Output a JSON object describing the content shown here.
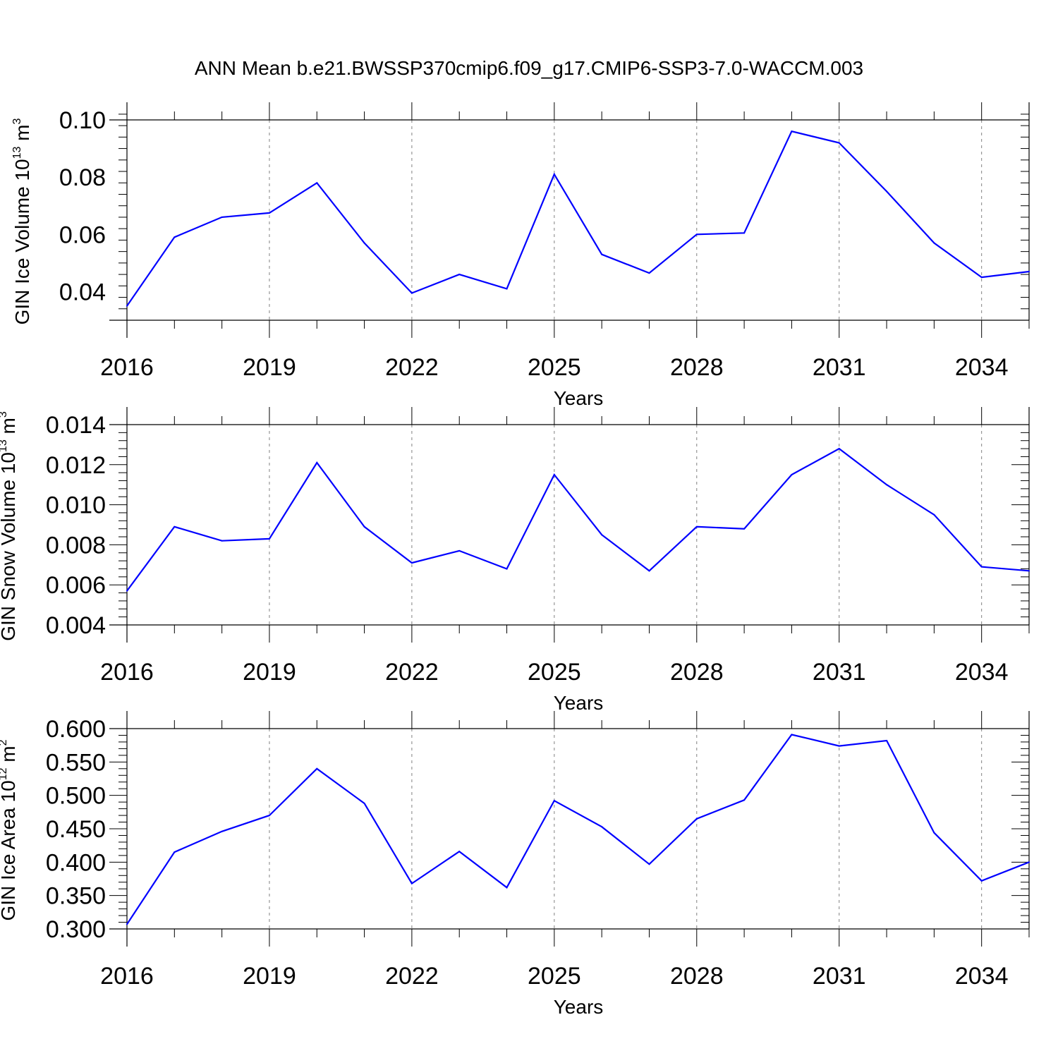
{
  "title": "ANN Mean b.e21.BWSSP370cmip6.f09_g17.CMIP6-SSP3-7.0-WACCM.003",
  "colors": {
    "line": "#0000ff",
    "axis": "#000000",
    "grid": "#808080",
    "background": "#ffffff"
  },
  "chart_data": [
    {
      "type": "line",
      "title": "",
      "xlabel": "Years",
      "ylabel": {
        "main": "GIN Ice Volume 10",
        "sup": "13",
        "unit": " m",
        "unit_sup": "3"
      },
      "x_tick_labels": [
        "2016",
        "2019",
        "2022",
        "2025",
        "2028",
        "2031",
        "2034"
      ],
      "x_ticks": [
        2016,
        2019,
        2022,
        2025,
        2028,
        2031,
        2034
      ],
      "y_tick_labels": [
        "0.04",
        "0.06",
        "0.08",
        "0.10"
      ],
      "y_ticks": [
        0.04,
        0.06,
        0.08,
        0.1
      ],
      "xlim": [
        2016,
        2035
      ],
      "ylim": [
        0.03,
        0.1
      ],
      "x_grid": "vertical dashed at labeled years",
      "x": [
        2016,
        2017,
        2018,
        2019,
        2020,
        2021,
        2022,
        2023,
        2024,
        2025,
        2026,
        2027,
        2028,
        2029,
        2030,
        2031,
        2032,
        2033,
        2034,
        2035
      ],
      "y": [
        0.035,
        0.059,
        0.066,
        0.0675,
        0.078,
        0.057,
        0.0395,
        0.046,
        0.041,
        0.081,
        0.053,
        0.0465,
        0.06,
        0.0605,
        0.096,
        0.092,
        0.075,
        0.057,
        0.045,
        0.047
      ]
    },
    {
      "type": "line",
      "title": "",
      "xlabel": "Years",
      "ylabel": {
        "main": "GIN Snow Volume 10",
        "sup": "13",
        "unit": " m",
        "unit_sup": "3"
      },
      "x_tick_labels": [
        "2016",
        "2019",
        "2022",
        "2025",
        "2028",
        "2031",
        "2034"
      ],
      "x_ticks": [
        2016,
        2019,
        2022,
        2025,
        2028,
        2031,
        2034
      ],
      "y_tick_labels": [
        "0.004",
        "0.006",
        "0.008",
        "0.010",
        "0.012",
        "0.014"
      ],
      "y_ticks": [
        0.004,
        0.006,
        0.008,
        0.01,
        0.012,
        0.014
      ],
      "xlim": [
        2016,
        2035
      ],
      "ylim": [
        0.004,
        0.014
      ],
      "x_grid": "vertical dashed at labeled years",
      "x": [
        2016,
        2017,
        2018,
        2019,
        2020,
        2021,
        2022,
        2023,
        2024,
        2025,
        2026,
        2027,
        2028,
        2029,
        2030,
        2031,
        2032,
        2033,
        2034,
        2035
      ],
      "y": [
        0.0057,
        0.0089,
        0.0082,
        0.0083,
        0.0121,
        0.0089,
        0.0071,
        0.0077,
        0.0068,
        0.0115,
        0.0085,
        0.0067,
        0.0089,
        0.0088,
        0.0115,
        0.0128,
        0.011,
        0.0095,
        0.0069,
        0.0067
      ]
    },
    {
      "type": "line",
      "title": "",
      "xlabel": "Years",
      "ylabel": {
        "main": "GIN Ice Area 10",
        "sup": "12",
        "unit": " m",
        "unit_sup": "2"
      },
      "x_tick_labels": [
        "2016",
        "2019",
        "2022",
        "2025",
        "2028",
        "2031",
        "2034"
      ],
      "x_ticks": [
        2016,
        2019,
        2022,
        2025,
        2028,
        2031,
        2034
      ],
      "y_tick_labels": [
        "0.300",
        "0.350",
        "0.400",
        "0.450",
        "0.500",
        "0.550",
        "0.600"
      ],
      "y_ticks": [
        0.3,
        0.35,
        0.4,
        0.45,
        0.5,
        0.55,
        0.6
      ],
      "xlim": [
        2016,
        2035
      ],
      "ylim": [
        0.3,
        0.6
      ],
      "x_grid": "vertical dashed at labeled years",
      "x": [
        2016,
        2017,
        2018,
        2019,
        2020,
        2021,
        2022,
        2023,
        2024,
        2025,
        2026,
        2027,
        2028,
        2029,
        2030,
        2031,
        2032,
        2033,
        2034,
        2035
      ],
      "y": [
        0.307,
        0.415,
        0.446,
        0.47,
        0.54,
        0.488,
        0.368,
        0.416,
        0.362,
        0.492,
        0.453,
        0.397,
        0.465,
        0.493,
        0.591,
        0.574,
        0.582,
        0.444,
        0.372,
        0.4
      ]
    }
  ]
}
